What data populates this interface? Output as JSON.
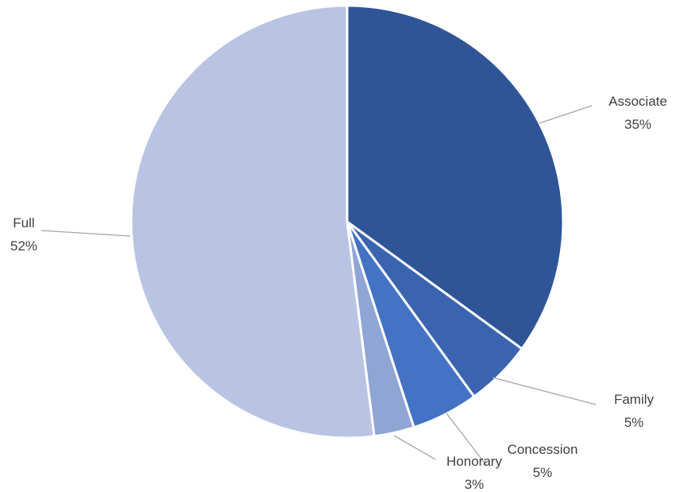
{
  "chart_data": {
    "type": "pie",
    "title": "",
    "slices": [
      {
        "name": "Associate",
        "value": 35,
        "label": "35%",
        "color": "#2f5597"
      },
      {
        "name": "Family",
        "value": 5,
        "label": "5%",
        "color": "#3a64b0"
      },
      {
        "name": "Concession",
        "value": 5,
        "label": "5%",
        "color": "#4472c4"
      },
      {
        "name": "Honorary",
        "value": 3,
        "label": "3%",
        "color": "#8fa5d6"
      },
      {
        "name": "Full",
        "value": 52,
        "label": "52%",
        "color": "#b9c4e3"
      }
    ]
  }
}
